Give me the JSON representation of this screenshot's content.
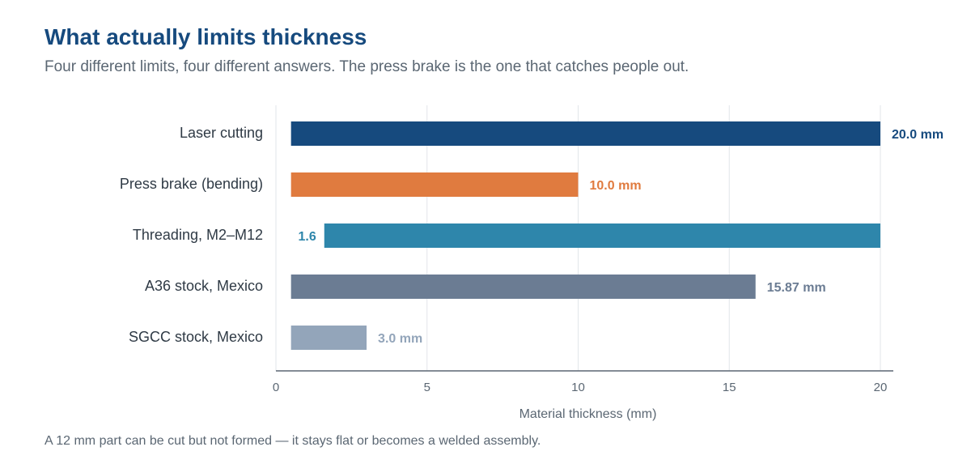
{
  "title": "What actually limits thickness",
  "subtitle": "Four different limits, four different answers. The press brake is the one that catches people out.",
  "footnote": "A 12 mm part can be cut but not formed — it stays flat or becomes a welded assembly.",
  "chart_data": {
    "type": "bar",
    "orientation": "horizontal",
    "xlabel": "Material thickness (mm)",
    "xlim": [
      0,
      20
    ],
    "xticks": [
      0,
      5,
      10,
      15,
      20
    ],
    "grid": "vertical",
    "bars": [
      {
        "category": "Laser cutting",
        "start": 0.5,
        "end": 20,
        "label": "20.0 mm",
        "label_position": "end",
        "color": "#164a7e"
      },
      {
        "category": "Press brake (bending)",
        "start": 0.5,
        "end": 10,
        "label": "10.0 mm",
        "label_position": "end",
        "color": "#e07b3f"
      },
      {
        "category": "Threading, M2–M12",
        "start": 1.6,
        "end": 20,
        "label": "1.6",
        "label_position": "start",
        "color": "#2e86ab"
      },
      {
        "category": "A36 stock, Mexico",
        "start": 0.5,
        "end": 15.87,
        "label": "15.87 mm",
        "label_position": "end",
        "color": "#6b7c93"
      },
      {
        "category": "SGCC stock, Mexico",
        "start": 0.5,
        "end": 3,
        "label": "3.0 mm",
        "label_position": "end",
        "color": "#93a5ba"
      }
    ]
  }
}
